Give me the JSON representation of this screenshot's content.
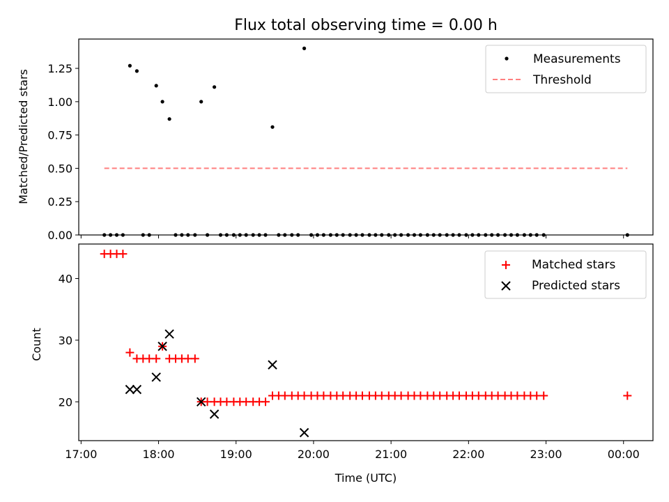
{
  "figure": {
    "title": "Flux total observing time = 0.00 h"
  },
  "chart_data": [
    {
      "type": "scatter",
      "title": "Flux total observing time = 0.00 h",
      "xlabel": "",
      "ylabel": "Matched/Predicted stars",
      "xlim": [
        16.97,
        24.38
      ],
      "ylim": [
        0.0,
        1.47
      ],
      "x_ticks": [
        17,
        18,
        19,
        20,
        21,
        22,
        23,
        24
      ],
      "x_tick_labels": [],
      "y_ticks": [
        0.0,
        0.25,
        0.5,
        0.75,
        1.0,
        1.25
      ],
      "y_tick_labels": [
        "0.00",
        "0.25",
        "0.50",
        "0.75",
        "1.00",
        "1.25"
      ],
      "grid": false,
      "legend": {
        "placement": "upper right",
        "entries": [
          "Measurements",
          "Threshold"
        ]
      },
      "series": [
        {
          "name": "Measurements",
          "kind": "points",
          "color": "#000000",
          "x": [
            17.3,
            17.38,
            17.46,
            17.54,
            17.63,
            17.72,
            17.8,
            17.88,
            17.97,
            18.05,
            18.14,
            18.22,
            18.3,
            18.38,
            18.47,
            18.55,
            18.63,
            18.72,
            18.8,
            18.88,
            18.97,
            19.05,
            19.13,
            19.22,
            19.3,
            19.38,
            19.47,
            19.55,
            19.63,
            19.72,
            19.8,
            19.88,
            19.97,
            20.05,
            20.13,
            20.22,
            20.3,
            20.38,
            20.47,
            20.55,
            20.63,
            20.72,
            20.8,
            20.88,
            20.97,
            21.05,
            21.13,
            21.22,
            21.3,
            21.38,
            21.47,
            21.55,
            21.63,
            21.72,
            21.8,
            21.88,
            21.97,
            22.05,
            22.13,
            22.22,
            22.3,
            22.38,
            22.47,
            22.55,
            22.63,
            22.72,
            22.8,
            22.88,
            22.97,
            24.05
          ],
          "y": [
            0,
            0,
            0,
            0,
            1.27,
            1.23,
            0,
            0,
            1.12,
            1.0,
            0.87,
            0,
            0,
            0,
            0,
            1.0,
            0,
            1.11,
            0,
            0,
            0,
            0,
            0,
            0,
            0,
            0,
            0.81,
            0,
            0,
            0,
            0,
            1.4,
            0,
            0,
            0,
            0,
            0,
            0,
            0,
            0,
            0,
            0,
            0,
            0,
            0,
            0,
            0,
            0,
            0,
            0,
            0,
            0,
            0,
            0,
            0,
            0,
            0,
            0,
            0,
            0,
            0,
            0,
            0,
            0,
            0,
            0,
            0,
            0,
            0,
            0
          ]
        },
        {
          "name": "Threshold",
          "kind": "dashed-line",
          "color": "#ff7f7f",
          "x": [
            17.3,
            24.05
          ],
          "y": [
            0.5,
            0.5
          ]
        }
      ]
    },
    {
      "type": "scatter",
      "title": "",
      "xlabel": "Time (UTC)",
      "ylabel": "Count",
      "xlim": [
        16.97,
        24.38
      ],
      "ylim": [
        13.7,
        45.6
      ],
      "x_ticks": [
        17,
        18,
        19,
        20,
        21,
        22,
        23,
        24
      ],
      "x_tick_labels": [
        "17:00",
        "18:00",
        "19:00",
        "20:00",
        "21:00",
        "22:00",
        "23:00",
        "00:00"
      ],
      "y_ticks": [
        20,
        30,
        40
      ],
      "y_tick_labels": [
        "20",
        "30",
        "40"
      ],
      "grid": false,
      "legend": {
        "placement": "upper right",
        "entries": [
          "Matched stars",
          "Predicted stars"
        ]
      },
      "series": [
        {
          "name": "Matched stars",
          "marker": "+",
          "color": "#ff0000",
          "x": [
            17.3,
            17.38,
            17.46,
            17.54,
            17.63,
            17.72,
            17.8,
            17.88,
            17.97,
            18.05,
            18.14,
            18.22,
            18.3,
            18.38,
            18.47,
            18.55,
            18.63,
            18.72,
            18.8,
            18.88,
            18.97,
            19.05,
            19.13,
            19.22,
            19.3,
            19.38,
            19.47,
            19.55,
            19.63,
            19.72,
            19.8,
            19.88,
            19.97,
            20.05,
            20.13,
            20.22,
            20.3,
            20.38,
            20.47,
            20.55,
            20.63,
            20.72,
            20.8,
            20.88,
            20.97,
            21.05,
            21.13,
            21.22,
            21.3,
            21.38,
            21.47,
            21.55,
            21.63,
            21.72,
            21.8,
            21.88,
            21.97,
            22.05,
            22.13,
            22.22,
            22.3,
            22.38,
            22.47,
            22.55,
            22.63,
            22.72,
            22.8,
            22.88,
            22.97,
            24.05
          ],
          "y": [
            44,
            44,
            44,
            44,
            28,
            27,
            27,
            27,
            27,
            29,
            27,
            27,
            27,
            27,
            27,
            20,
            20,
            20,
            20,
            20,
            20,
            20,
            20,
            20,
            20,
            20,
            21,
            21,
            21,
            21,
            21,
            21,
            21,
            21,
            21,
            21,
            21,
            21,
            21,
            21,
            21,
            21,
            21,
            21,
            21,
            21,
            21,
            21,
            21,
            21,
            21,
            21,
            21,
            21,
            21,
            21,
            21,
            21,
            21,
            21,
            21,
            21,
            21,
            21,
            21,
            21,
            21,
            21,
            21,
            21
          ]
        },
        {
          "name": "Predicted stars",
          "marker": "x",
          "color": "#000000",
          "x": [
            17.63,
            17.72,
            17.97,
            18.05,
            18.14,
            18.55,
            18.72,
            19.47,
            19.88
          ],
          "y": [
            22,
            22,
            24,
            29,
            31,
            20,
            18,
            26,
            15
          ]
        }
      ]
    }
  ]
}
